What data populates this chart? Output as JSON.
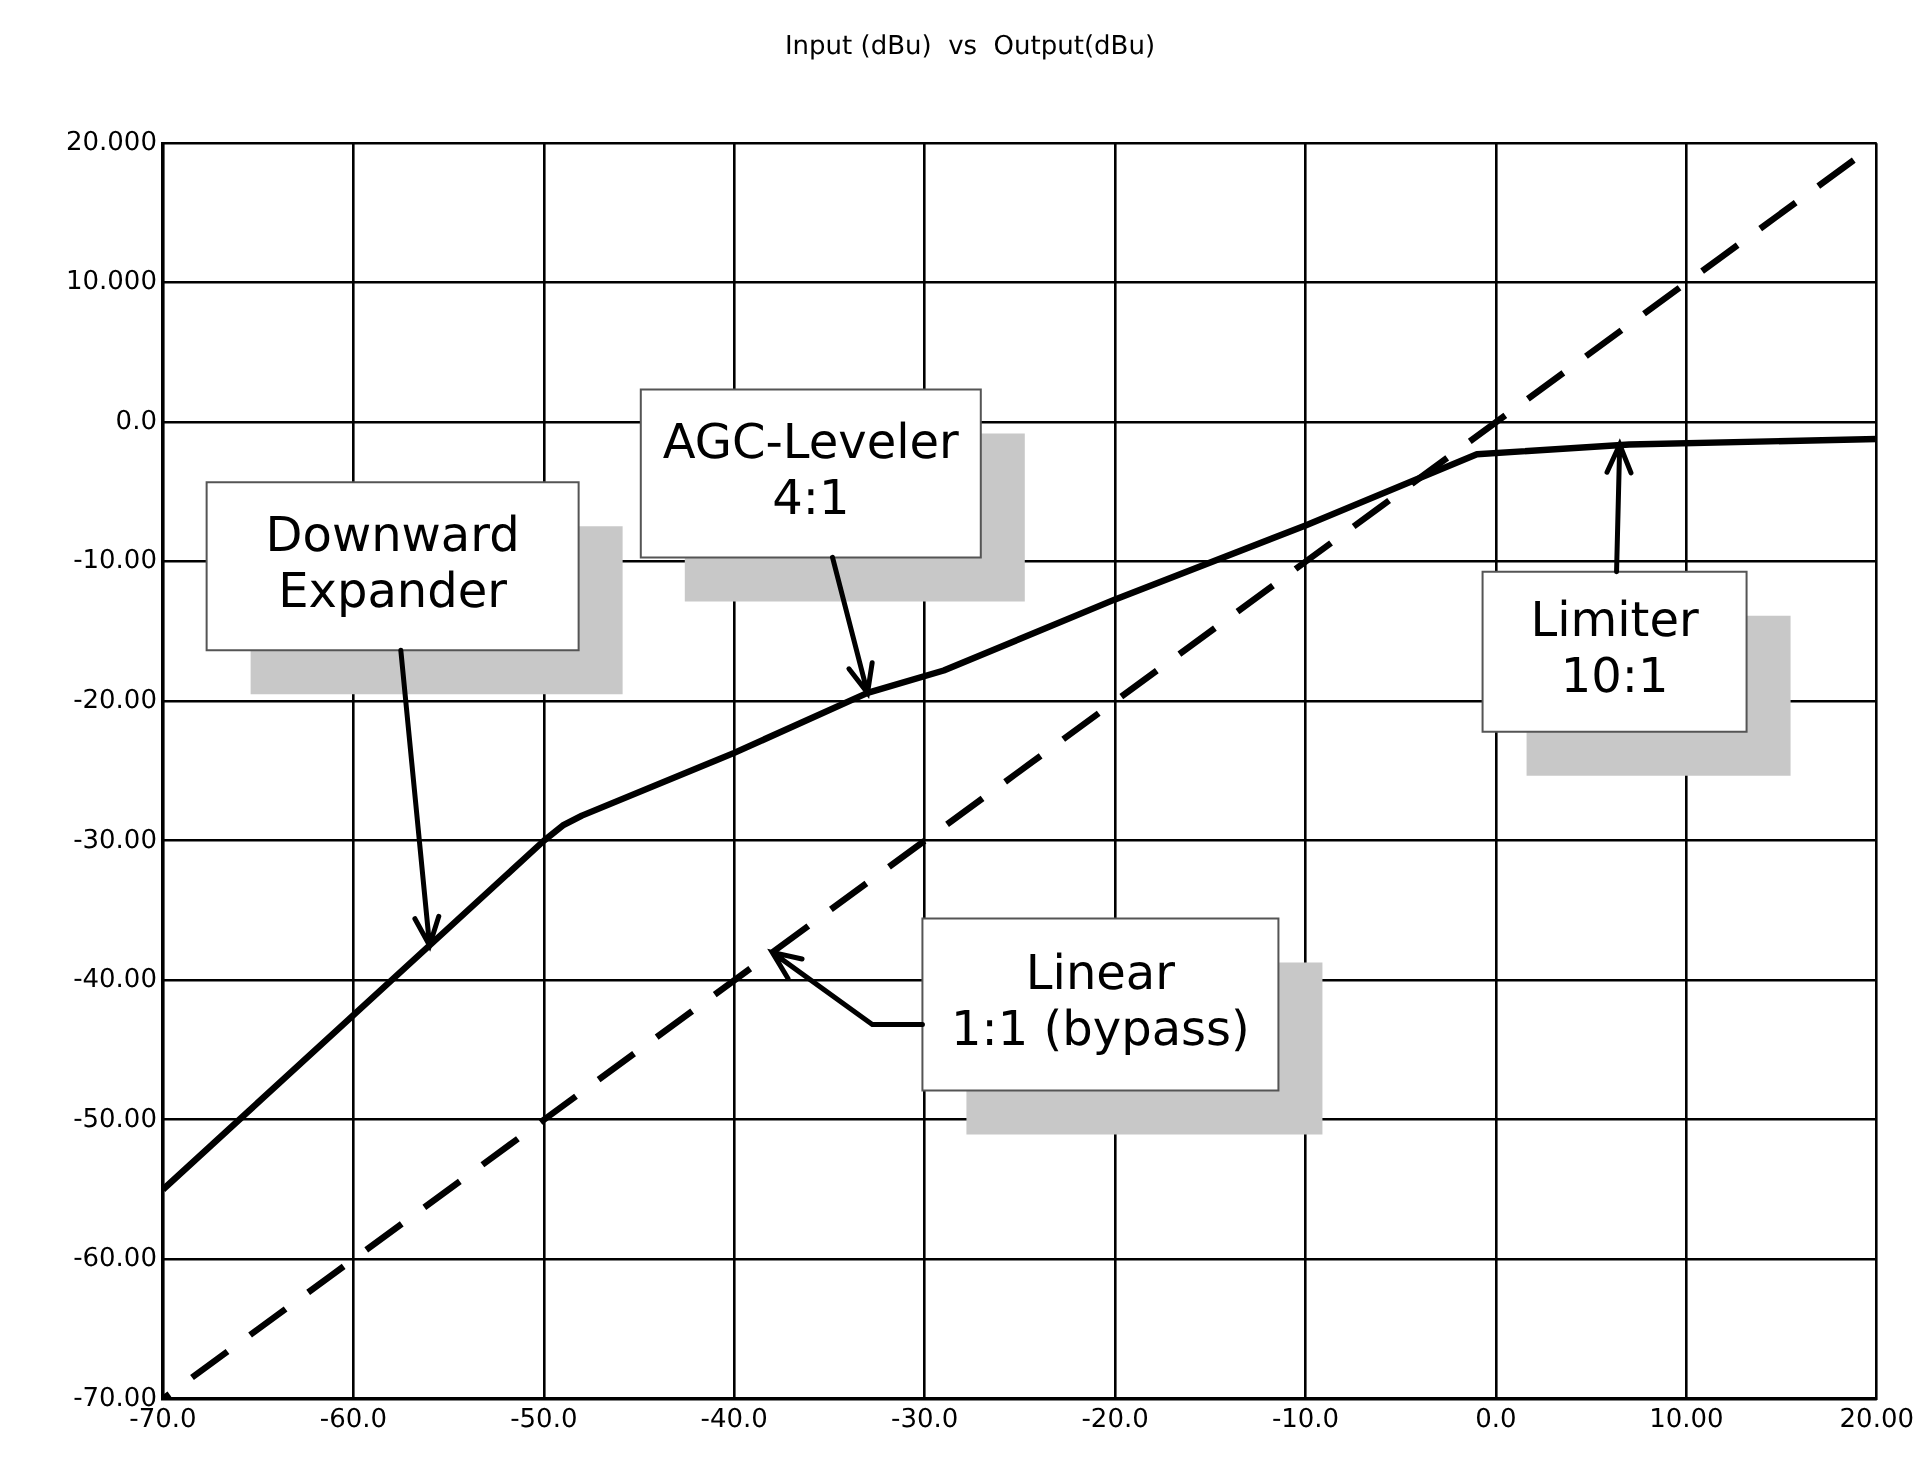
{
  "chart_data": {
    "type": "line",
    "title": "Input (dBu)  vs  Output(dBu)",
    "xlim": [
      -70,
      20
    ],
    "xticks": [
      {
        "value": -70,
        "label": "-70.0"
      },
      {
        "value": -60,
        "label": "-60.0"
      },
      {
        "value": -50,
        "label": "-50.0"
      },
      {
        "value": -40,
        "label": "-40.0"
      },
      {
        "value": -30,
        "label": "-30.0"
      },
      {
        "value": -20,
        "label": "-20.0"
      },
      {
        "value": -10,
        "label": "-10.0"
      },
      {
        "value": 0,
        "label": "0.0"
      },
      {
        "value": 10,
        "label": "10.00"
      },
      {
        "value": 20,
        "label": "20.00"
      }
    ],
    "ylim": [
      -70,
      20
    ],
    "yticks": [
      {
        "value": -70,
        "label": "-70.00"
      },
      {
        "value": -60,
        "label": "-60.00"
      },
      {
        "value": -50,
        "label": "-50.00"
      },
      {
        "value": -40,
        "label": "-40.00"
      },
      {
        "value": -30,
        "label": "-30.00"
      },
      {
        "value": -20,
        "label": "-20.00"
      },
      {
        "value": -10,
        "label": "-10.00"
      },
      {
        "value": 0,
        "label": "0.0"
      },
      {
        "value": 10,
        "label": "10.000"
      },
      {
        "value": 20,
        "label": "20.000"
      }
    ],
    "grid": true,
    "legend": false,
    "marker": "none",
    "series": [
      {
        "color": "#000000",
        "line_style": "solid",
        "x": [
          -70,
          -50,
          -49,
          -48,
          -40,
          -33,
          -29,
          -20,
          -10,
          -1,
          7,
          20
        ],
        "values": [
          -55,
          -30,
          -28.9,
          -28.2,
          -23.7,
          -19.4,
          -17.8,
          -12.7,
          -7.4,
          -2.3,
          -1.6,
          -1.2
        ]
      },
      {
        "color": "#000000",
        "line_style": "dashed",
        "x": [
          -70,
          20
        ],
        "values": [
          -70,
          20
        ]
      }
    ],
    "annotations": [
      {
        "text": "Downward\nExpander",
        "x": -56,
        "y": -37.5
      },
      {
        "text": "AGC-Leveler\n4:1",
        "x": -33,
        "y": -19.4
      },
      {
        "text": "Linear\n1:1 (bypass)",
        "x": -38,
        "y": -38
      },
      {
        "text": "Limiter\n10:1",
        "x": 6.5,
        "y": -1.6
      }
    ]
  }
}
